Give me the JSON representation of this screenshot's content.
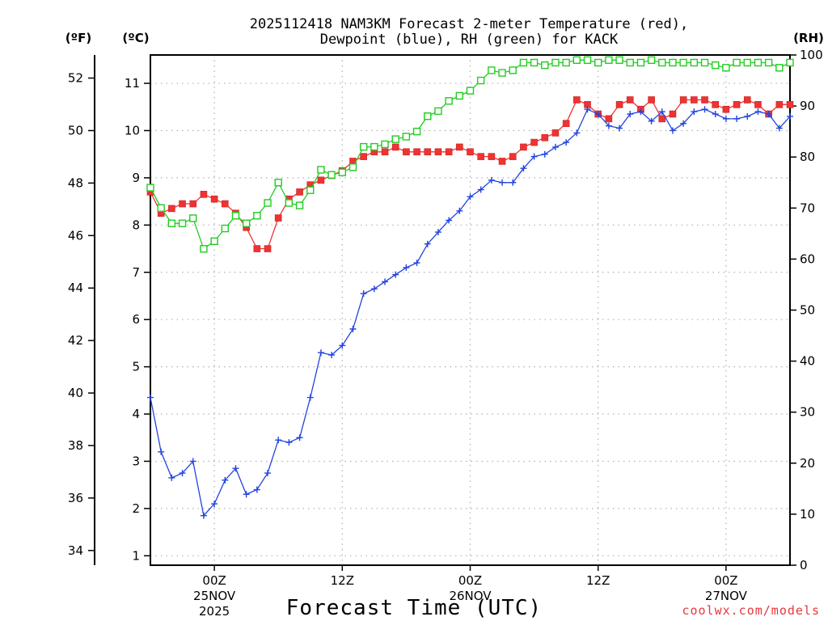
{
  "chart_data": {
    "type": "line",
    "title_line1": "2025112418 NAM3KM Forecast 2-meter Temperature (red),",
    "title_line2": "Dewpoint (blue), RH (green) for KACK",
    "xlabel": "Forecast Time (UTC)",
    "credit": "coolwx.com/models",
    "units": {
      "fahrenheit": "(ºF)",
      "celsius": "(ºC)",
      "rh": "(RH)"
    },
    "x_range_hours": [
      18,
      78
    ],
    "celsius_range": [
      0.8,
      11.6
    ],
    "fahrenheit_range": [
      33.44,
      52.88
    ],
    "rh_range": [
      0,
      100
    ],
    "celsius_ticks": [
      "1",
      "2",
      "3",
      "4",
      "5",
      "6",
      "7",
      "8",
      "9",
      "10",
      "11"
    ],
    "fahrenheit_ticks": [
      "34",
      "36",
      "38",
      "40",
      "42",
      "44",
      "46",
      "48",
      "50",
      "52"
    ],
    "rh_ticks": [
      "0",
      "10",
      "20",
      "30",
      "40",
      "50",
      "60",
      "70",
      "80",
      "90",
      "100"
    ],
    "x_ticks": [
      {
        "hour": 24,
        "time": "00Z",
        "date": "25NOV",
        "year": "2025"
      },
      {
        "hour": 36,
        "time": "12Z",
        "date": "",
        "year": ""
      },
      {
        "hour": 48,
        "time": "00Z",
        "date": "26NOV",
        "year": ""
      },
      {
        "hour": 60,
        "time": "12Z",
        "date": "",
        "year": ""
      },
      {
        "hour": 72,
        "time": "00Z",
        "date": "27NOV",
        "year": ""
      }
    ],
    "hours": [
      18,
      19,
      20,
      21,
      22,
      23,
      24,
      25,
      26,
      27,
      28,
      29,
      30,
      31,
      32,
      33,
      34,
      35,
      36,
      37,
      38,
      39,
      40,
      41,
      42,
      43,
      44,
      45,
      46,
      47,
      48,
      49,
      50,
      51,
      52,
      53,
      54,
      55,
      56,
      57,
      58,
      59,
      60,
      61,
      62,
      63,
      64,
      65,
      66,
      67,
      68,
      69,
      70,
      71,
      72,
      73,
      74,
      75,
      76,
      77,
      78
    ],
    "series": [
      {
        "name": "Temperature",
        "unit": "C",
        "color": "#ee3333",
        "marker": "filled-square",
        "values": [
          8.7,
          8.25,
          8.35,
          8.45,
          8.45,
          8.65,
          8.55,
          8.45,
          8.25,
          7.95,
          7.5,
          7.5,
          8.15,
          8.55,
          8.7,
          8.85,
          8.95,
          9.05,
          9.15,
          9.35,
          9.45,
          9.55,
          9.55,
          9.65,
          9.55,
          9.55,
          9.55,
          9.55,
          9.55,
          9.65,
          9.55,
          9.45,
          9.45,
          9.35,
          9.45,
          9.65,
          9.75,
          9.85,
          9.95,
          10.15,
          10.65,
          10.55,
          10.35,
          10.25,
          10.55,
          10.65,
          10.45,
          10.65,
          10.25,
          10.35,
          10.65,
          10.65,
          10.65,
          10.55,
          10.45,
          10.55,
          10.65,
          10.55,
          10.35,
          10.55,
          10.55
        ]
      },
      {
        "name": "Dewpoint",
        "unit": "C",
        "color": "#2244dd",
        "marker": "plus",
        "values": [
          4.35,
          3.2,
          2.65,
          2.75,
          3.0,
          1.85,
          2.1,
          2.6,
          2.85,
          2.3,
          2.4,
          2.75,
          3.45,
          3.4,
          3.5,
          4.35,
          5.3,
          5.25,
          5.45,
          5.8,
          6.55,
          6.65,
          6.8,
          6.95,
          7.1,
          7.2,
          7.6,
          7.85,
          8.1,
          8.3,
          8.6,
          8.75,
          8.95,
          8.9,
          8.9,
          9.2,
          9.45,
          9.5,
          9.65,
          9.75,
          9.95,
          10.45,
          10.35,
          10.1,
          10.05,
          10.35,
          10.4,
          10.2,
          10.4,
          10.0,
          10.15,
          10.4,
          10.45,
          10.35,
          10.25,
          10.25,
          10.3,
          10.4,
          10.35,
          10.05,
          10.3
        ]
      },
      {
        "name": "RH",
        "unit": "%",
        "color": "#22cc22",
        "marker": "open-square",
        "values": [
          74,
          70,
          67,
          67,
          68,
          62,
          63.5,
          66,
          68.5,
          67,
          68.5,
          71,
          75,
          71,
          70.5,
          73.5,
          77.5,
          76.5,
          77,
          78,
          82,
          82,
          82.5,
          83.5,
          84,
          85,
          88,
          89,
          91,
          92,
          93,
          95,
          97,
          96.5,
          97,
          98.5,
          98.5,
          98,
          98.5,
          98.5,
          99,
          99,
          98.5,
          99,
          99,
          98.5,
          98.5,
          99,
          98.5,
          98.5,
          98.5,
          98.5,
          98.5,
          98,
          97.5,
          98.5,
          98.5,
          98.5,
          98.5,
          97.5,
          98.5
        ]
      }
    ]
  }
}
